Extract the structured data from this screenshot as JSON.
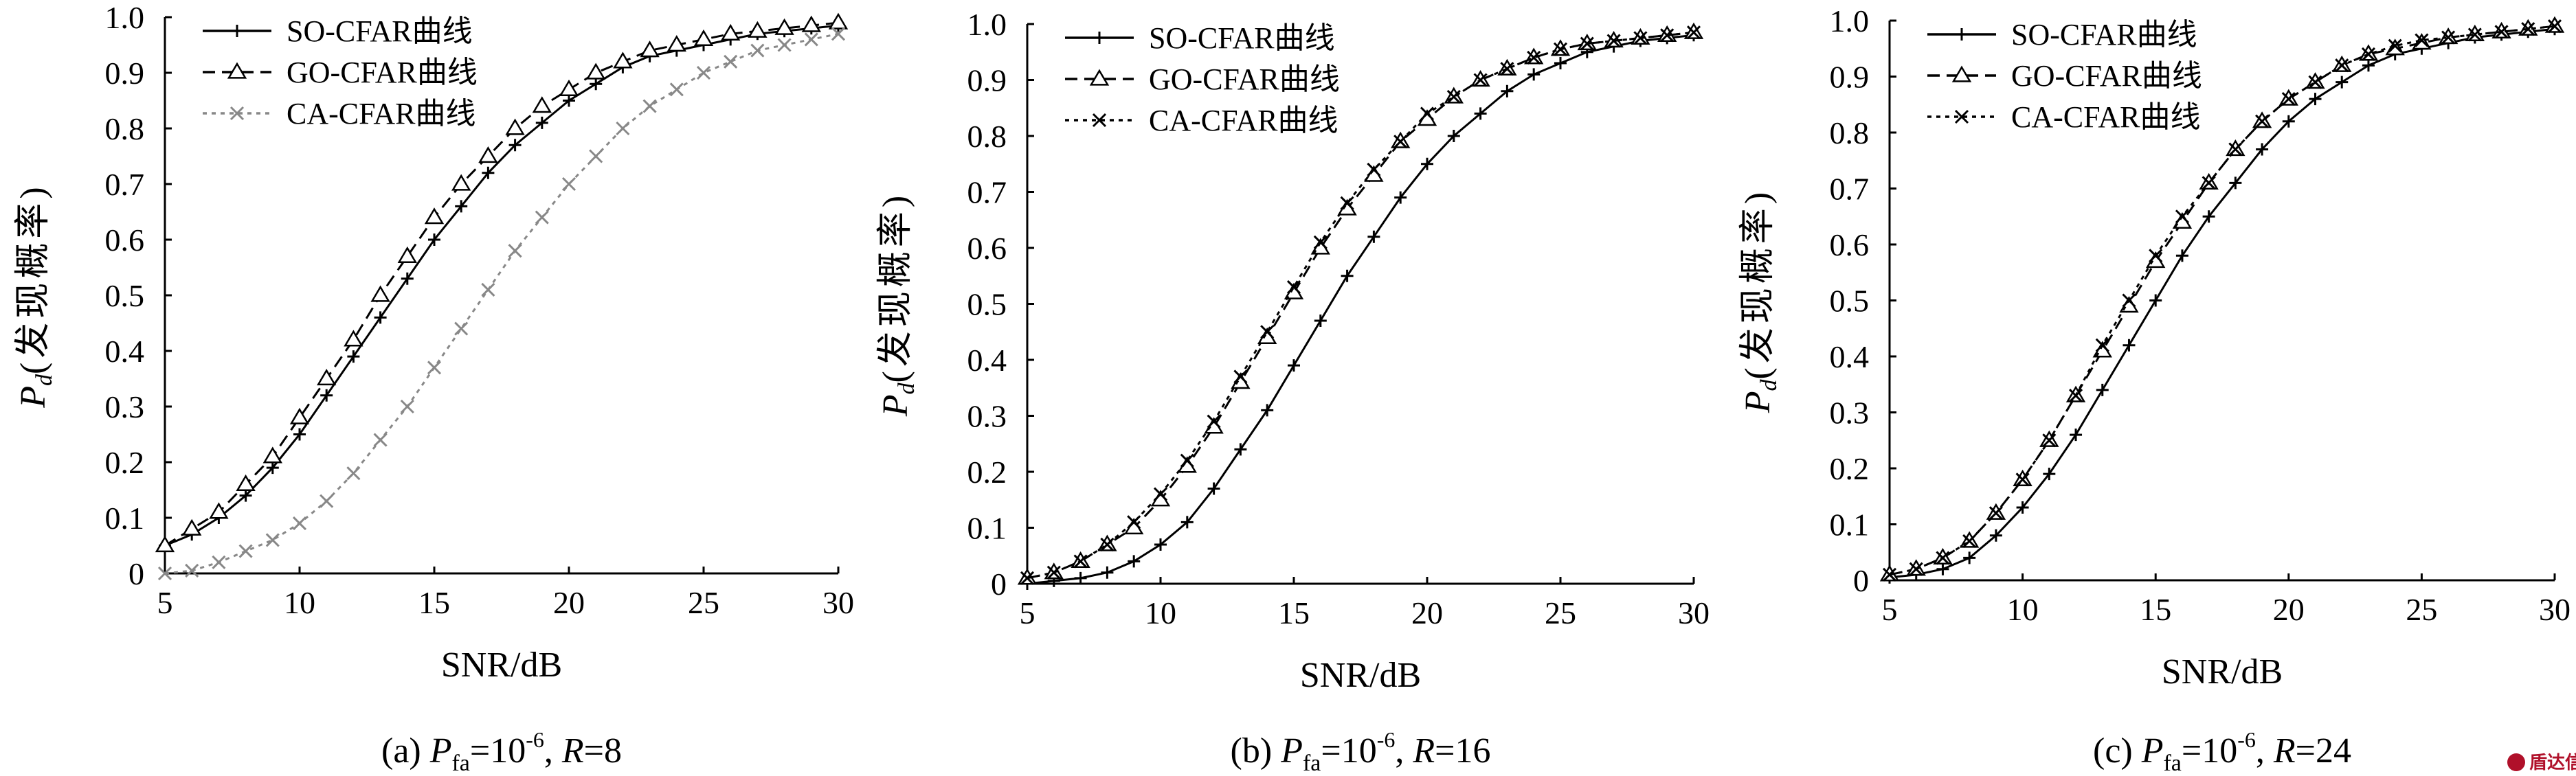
{
  "chart_data": [
    {
      "type": "line",
      "caption": {
        "prefix": "(a) ",
        "p": "P",
        "sub": "fa",
        "eq": "=10",
        "sup": "-6",
        "sep": ", ",
        "r": "R",
        "rval": "=8"
      },
      "xlabel": "SNR/dB",
      "ylabel": {
        "p": "P",
        "sub": "d",
        "text": "(发现概率)"
      },
      "xlim": [
        5,
        30
      ],
      "ylim": [
        0,
        1.0
      ],
      "xticks": [
        "5",
        "10",
        "15",
        "20",
        "25",
        "30"
      ],
      "yticks": [
        "0",
        "0.1",
        "0.2",
        "0.3",
        "0.4",
        "0.5",
        "0.6",
        "0.7",
        "0.8",
        "0.9",
        "1.0"
      ],
      "legend_position": "top-left",
      "x": [
        5,
        6,
        7,
        8,
        9,
        10,
        11,
        12,
        13,
        14,
        15,
        16,
        17,
        18,
        19,
        20,
        21,
        22,
        23,
        24,
        25,
        26,
        27,
        28,
        29,
        30
      ],
      "series": [
        {
          "name": "SO-CFAR曲线",
          "marker": "plus",
          "color": "#000000",
          "dash": "solid",
          "values": [
            0.05,
            0.07,
            0.1,
            0.14,
            0.19,
            0.25,
            0.32,
            0.39,
            0.46,
            0.53,
            0.6,
            0.66,
            0.72,
            0.77,
            0.81,
            0.85,
            0.88,
            0.91,
            0.93,
            0.94,
            0.95,
            0.96,
            0.97,
            0.975,
            0.98,
            0.985
          ]
        },
        {
          "name": "GO-CFAR曲线",
          "marker": "triangle",
          "color": "#000000",
          "dash": "dash",
          "values": [
            0.05,
            0.08,
            0.11,
            0.16,
            0.21,
            0.28,
            0.35,
            0.42,
            0.5,
            0.57,
            0.64,
            0.7,
            0.75,
            0.8,
            0.84,
            0.87,
            0.9,
            0.92,
            0.94,
            0.95,
            0.96,
            0.97,
            0.975,
            0.98,
            0.985,
            0.99
          ]
        },
        {
          "name": "CA-CFAR曲线",
          "marker": "cross",
          "color": "#888888",
          "dash": "dot",
          "values": [
            0.0,
            0.005,
            0.02,
            0.04,
            0.06,
            0.09,
            0.13,
            0.18,
            0.24,
            0.3,
            0.37,
            0.44,
            0.51,
            0.58,
            0.64,
            0.7,
            0.75,
            0.8,
            0.84,
            0.87,
            0.9,
            0.92,
            0.94,
            0.95,
            0.96,
            0.97
          ]
        }
      ]
    },
    {
      "type": "line",
      "caption": {
        "prefix": "(b) ",
        "p": "P",
        "sub": "fa",
        "eq": "=10",
        "sup": "-6",
        "sep": ", ",
        "r": "R",
        "rval": "=16"
      },
      "xlabel": "SNR/dB",
      "ylabel": {
        "p": "P",
        "sub": "d",
        "text": "(发现概率)"
      },
      "xlim": [
        5,
        30
      ],
      "ylim": [
        0,
        1.0
      ],
      "xticks": [
        "5",
        "10",
        "15",
        "20",
        "25",
        "30"
      ],
      "yticks": [
        "0",
        "0.1",
        "0.2",
        "0.3",
        "0.4",
        "0.5",
        "0.6",
        "0.7",
        "0.8",
        "0.9",
        "1.0"
      ],
      "legend_position": "top-left",
      "x": [
        5,
        6,
        7,
        8,
        9,
        10,
        11,
        12,
        13,
        14,
        15,
        16,
        17,
        18,
        19,
        20,
        21,
        22,
        23,
        24,
        25,
        26,
        27,
        28,
        29,
        30
      ],
      "series": [
        {
          "name": "SO-CFAR曲线",
          "marker": "plus",
          "color": "#000000",
          "dash": "solid",
          "values": [
            0.0,
            0.005,
            0.01,
            0.02,
            0.04,
            0.07,
            0.11,
            0.17,
            0.24,
            0.31,
            0.39,
            0.47,
            0.55,
            0.62,
            0.69,
            0.75,
            0.8,
            0.84,
            0.88,
            0.91,
            0.93,
            0.95,
            0.96,
            0.97,
            0.975,
            0.98
          ]
        },
        {
          "name": "GO-CFAR曲线",
          "marker": "triangle",
          "color": "#000000",
          "dash": "dash",
          "values": [
            0.01,
            0.02,
            0.04,
            0.07,
            0.1,
            0.15,
            0.21,
            0.28,
            0.36,
            0.44,
            0.52,
            0.6,
            0.67,
            0.73,
            0.79,
            0.83,
            0.87,
            0.9,
            0.92,
            0.94,
            0.955,
            0.965,
            0.97,
            0.975,
            0.98,
            0.985
          ]
        },
        {
          "name": "CA-CFAR曲线",
          "marker": "cross",
          "color": "#000000",
          "dash": "dot",
          "values": [
            0.01,
            0.02,
            0.04,
            0.07,
            0.11,
            0.16,
            0.22,
            0.29,
            0.37,
            0.45,
            0.53,
            0.61,
            0.68,
            0.74,
            0.79,
            0.84,
            0.87,
            0.9,
            0.92,
            0.94,
            0.955,
            0.965,
            0.97,
            0.975,
            0.98,
            0.985
          ]
        }
      ]
    },
    {
      "type": "line",
      "caption": {
        "prefix": "(c) ",
        "p": "P",
        "sub": "fa",
        "eq": "=10",
        "sup": "-6",
        "sep": ", ",
        "r": "R",
        "rval": "=24"
      },
      "xlabel": "SNR/dB",
      "ylabel": {
        "p": "P",
        "sub": "d",
        "text": "(发现概率)"
      },
      "xlim": [
        5,
        30
      ],
      "ylim": [
        0,
        1.0
      ],
      "xticks": [
        "5",
        "10",
        "15",
        "20",
        "25",
        "30"
      ],
      "yticks": [
        "0",
        "0.1",
        "0.2",
        "0.3",
        "0.4",
        "0.5",
        "0.6",
        "0.7",
        "0.8",
        "0.9",
        "1.0"
      ],
      "legend_position": "top-left",
      "x": [
        5,
        6,
        7,
        8,
        9,
        10,
        11,
        12,
        13,
        14,
        15,
        16,
        17,
        18,
        19,
        20,
        21,
        22,
        23,
        24,
        25,
        26,
        27,
        28,
        29,
        30
      ],
      "series": [
        {
          "name": "SO-CFAR曲线",
          "marker": "plus",
          "color": "#000000",
          "dash": "solid",
          "values": [
            0.005,
            0.01,
            0.02,
            0.04,
            0.08,
            0.13,
            0.19,
            0.26,
            0.34,
            0.42,
            0.5,
            0.58,
            0.65,
            0.71,
            0.77,
            0.82,
            0.86,
            0.89,
            0.92,
            0.94,
            0.95,
            0.96,
            0.97,
            0.975,
            0.98,
            0.985
          ]
        },
        {
          "name": "GO-CFAR曲线",
          "marker": "triangle",
          "color": "#000000",
          "dash": "dash",
          "values": [
            0.01,
            0.02,
            0.04,
            0.07,
            0.12,
            0.18,
            0.25,
            0.33,
            0.41,
            0.49,
            0.57,
            0.64,
            0.71,
            0.77,
            0.82,
            0.86,
            0.89,
            0.92,
            0.94,
            0.95,
            0.96,
            0.97,
            0.975,
            0.98,
            0.985,
            0.99
          ]
        },
        {
          "name": "CA-CFAR曲线",
          "marker": "cross",
          "color": "#000000",
          "dash": "dot",
          "values": [
            0.01,
            0.02,
            0.04,
            0.07,
            0.12,
            0.18,
            0.25,
            0.33,
            0.42,
            0.5,
            0.58,
            0.65,
            0.71,
            0.77,
            0.82,
            0.86,
            0.89,
            0.92,
            0.94,
            0.955,
            0.965,
            0.97,
            0.975,
            0.98,
            0.985,
            0.99
          ]
        }
      ]
    }
  ],
  "watermark": {
    "text": "盾达信"
  }
}
